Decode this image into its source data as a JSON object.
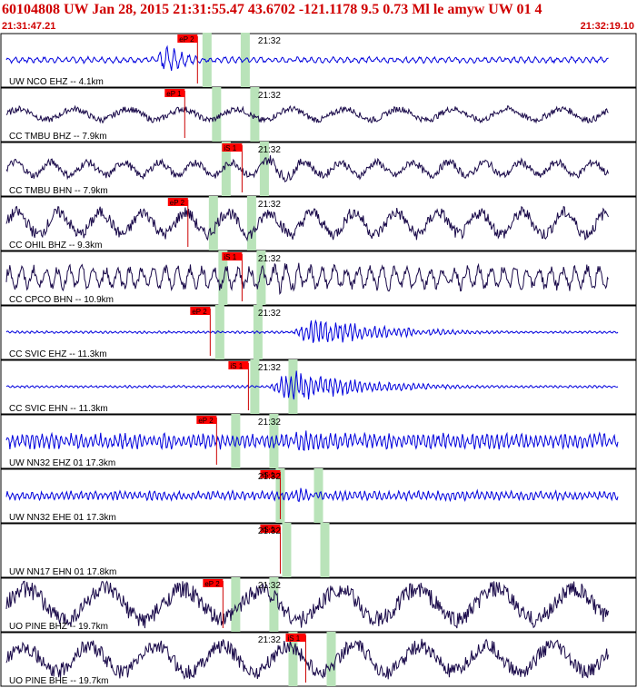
{
  "header": {
    "title": "60104808 UW Jan 28, 2015 21:31:55.47   43.6702 -121.1178  9.5 0.73 Ml le amyw UW 01   4",
    "start_time": "21:31:47.21",
    "end_time": "21:32:19.10"
  },
  "colors": {
    "header_text": "#d00000",
    "pick_box": "#ff0000",
    "window_band": "#b9e3b9",
    "trace_blue": "#0000dd",
    "trace_navy": "#1a0a4a",
    "pick_line": "#cc0000"
  },
  "minute_label": "21:32",
  "chart_data": {
    "type": "line",
    "x_range_time": [
      "21:31:47.21",
      "21:32:19.10"
    ],
    "traces": [
      {
        "label": "UW NCO EHZ -- 4.1km",
        "color": "blue",
        "pick": "eP 2",
        "pick_x": 0.31,
        "band_x": 0.325,
        "envelope": [
          0.25,
          0.32
        ],
        "amp": 0.55,
        "noise": 0.1,
        "period": 0.012
      },
      {
        "label": "CC TMBU BHZ -- 7.9km",
        "color": "navy",
        "pick": "eP 1",
        "pick_x": 0.29,
        "band_x": 0.34,
        "envelope": [
          0.38,
          0.55
        ],
        "amp": 0.35,
        "noise": 0.25,
        "period": 0.09
      },
      {
        "label": "CC TMBU BHN -- 7.9km",
        "color": "navy",
        "pick": "iS 1",
        "pick_x": 0.38,
        "band_x": 0.355,
        "envelope": [
          0.38,
          0.7
        ],
        "amp": 0.5,
        "noise": 0.3,
        "period": 0.06
      },
      {
        "label": "CC OHIL BHZ -- 9.3km",
        "color": "navy",
        "pick": "eP 2",
        "pick_x": 0.295,
        "band_x": 0.335,
        "envelope": [
          0.42,
          0.9
        ],
        "amp": 0.45,
        "noise": 0.5,
        "period": 0.07
      },
      {
        "label": "CC CPCO BHN -- 10.9km",
        "color": "navy",
        "pick": "iS 1",
        "pick_x": 0.38,
        "band_x": 0.35,
        "envelope": [
          0.4,
          0.7
        ],
        "amp": 0.6,
        "noise": 0.4,
        "period": 0.02
      },
      {
        "label": "CC SVIC EHZ -- 11.3km",
        "color": "blue",
        "pick": "eP 2",
        "pick_x": 0.33,
        "band_x": 0.345,
        "envelope": [
          0.47,
          0.68
        ],
        "amp": 0.55,
        "noise": 0.04,
        "period": 0.008
      },
      {
        "label": "CC SVIC EHN -- 11.3km",
        "color": "blue",
        "pick": "iS 1",
        "pick_x": 0.39,
        "band_x": 0.4,
        "envelope": [
          0.43,
          0.65
        ],
        "amp": 0.55,
        "noise": 0.04,
        "period": 0.008
      },
      {
        "label": "UW NN32 EHZ 01 17.3km",
        "color": "blue",
        "pick": "eP 2",
        "pick_x": 0.34,
        "band_x": 0.37,
        "envelope": [
          0.47,
          0.53
        ],
        "amp": 0.6,
        "noise": 0.25,
        "period": 0.008
      },
      {
        "label": "UW NN32 EHE 01 17.3km",
        "color": "blue",
        "pick": "iS 1",
        "pick_x": 0.44,
        "band_x": 0.44,
        "envelope": [
          0.47,
          0.52
        ],
        "amp": 0.35,
        "noise": 0.15,
        "period": 0.008
      },
      {
        "label": "UW NN17 EHN 01 17.8km",
        "color": "none",
        "pick": "iS 1",
        "pick_x": 0.44,
        "band_x": 0.45,
        "envelope": [
          0,
          0
        ],
        "amp": 0,
        "noise": 0,
        "period": 0.01
      },
      {
        "label": "UO PINE BHZ -- 19.7km",
        "color": "navy",
        "pick": "eP 2",
        "pick_x": 0.35,
        "band_x": 0.37,
        "envelope": [
          0,
          0
        ],
        "amp": 0.7,
        "noise": 0,
        "period": 0.13
      },
      {
        "label": "UO PINE BHE -- 19.7km",
        "color": "navy",
        "pick": "iS 1",
        "pick_x": 0.48,
        "band_x": 0.46,
        "envelope": [
          0,
          0
        ],
        "amp": 0.6,
        "noise": 0,
        "period": 0.11
      }
    ]
  }
}
